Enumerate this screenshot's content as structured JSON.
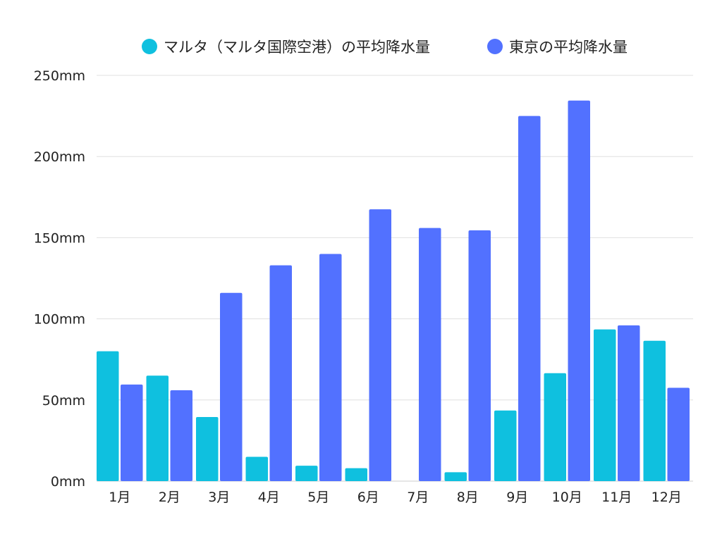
{
  "chart_data": {
    "type": "bar",
    "title": "",
    "xlabel": "",
    "ylabel": "",
    "categories": [
      "1月",
      "2月",
      "3月",
      "4月",
      "5月",
      "6月",
      "7月",
      "8月",
      "9月",
      "10月",
      "11月",
      "12月"
    ],
    "series": [
      {
        "name": "マルタ（マルタ国際空港）の平均降水量",
        "color": "#0fc0df",
        "values": [
          80,
          65,
          39.5,
          15,
          9.5,
          8,
          0,
          5.5,
          43.5,
          66.5,
          93.5,
          86.5
        ]
      },
      {
        "name": "東京の平均降水量",
        "color": "#5271ff",
        "values": [
          59.5,
          56,
          116,
          133,
          140,
          167.5,
          156,
          154.5,
          225,
          234.5,
          96,
          57.5
        ]
      }
    ],
    "ylim": [
      0,
      250
    ],
    "yticks": [
      0,
      50,
      100,
      150,
      200,
      250
    ],
    "ytick_labels": [
      "0mm",
      "50mm",
      "100mm",
      "150mm",
      "200mm",
      "250mm"
    ],
    "grid": true,
    "legend_position": "top-center",
    "gridline_color": "#e0e0e0"
  }
}
